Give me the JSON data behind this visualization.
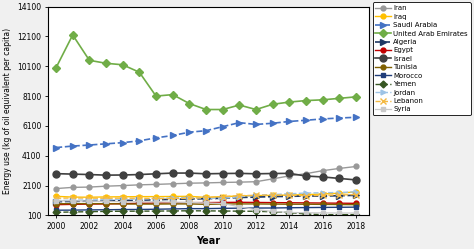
{
  "years": [
    2000,
    2001,
    2002,
    2003,
    2004,
    2005,
    2006,
    2007,
    2008,
    2009,
    2010,
    2011,
    2012,
    2013,
    2014,
    2015,
    2016,
    2017,
    2018
  ],
  "series": {
    "Iran": {
      "color": "#999999",
      "linestyle": "-",
      "marker": "o",
      "markersize": 3.5,
      "markerfacecolor": "#999999",
      "linewidth": 1.0,
      "values": [
        1900,
        1980,
        2000,
        2060,
        2100,
        2150,
        2180,
        2220,
        2260,
        2280,
        2310,
        2330,
        2360,
        2550,
        2750,
        2900,
        3100,
        3250,
        3380
      ]
    },
    "Iraq": {
      "color": "#ffc000",
      "linestyle": "-",
      "marker": "o",
      "markersize": 3.5,
      "markerfacecolor": "#ffc000",
      "linewidth": 1.0,
      "values": [
        1380,
        1330,
        1320,
        1340,
        1350,
        1360,
        1360,
        1370,
        1380,
        1310,
        1360,
        1400,
        1430,
        1440,
        1470,
        1490,
        1540,
        1590,
        1680
      ]
    },
    "Saudi Arabia": {
      "color": "#4472c4",
      "linestyle": "--",
      "marker": ">",
      "markersize": 4,
      "markerfacecolor": "#4472c4",
      "linewidth": 1.2,
      "values": [
        4650,
        4750,
        4820,
        4900,
        4980,
        5100,
        5300,
        5460,
        5680,
        5780,
        6050,
        6320,
        6200,
        6280,
        6400,
        6480,
        6570,
        6630,
        6680
      ]
    },
    "United Arab Emirates": {
      "color": "#70ad47",
      "linestyle": "-",
      "marker": "D",
      "markersize": 4,
      "markerfacecolor": "#70ad47",
      "linewidth": 1.2,
      "values": [
        10000,
        12200,
        10500,
        10300,
        10200,
        9700,
        8100,
        8200,
        7600,
        7200,
        7200,
        7500,
        7200,
        7550,
        7700,
        7800,
        7850,
        7950,
        8050
      ]
    },
    "Algeria": {
      "color": "#1f3864",
      "linestyle": "--",
      "marker": ">",
      "markersize": 4,
      "markerfacecolor": "#1f3864",
      "linewidth": 1.2,
      "values": [
        1020,
        1040,
        1060,
        1080,
        1100,
        1120,
        1150,
        1180,
        1200,
        1220,
        1250,
        1300,
        1330,
        1360,
        1380,
        1400,
        1400,
        1420,
        1450
      ]
    },
    "Egypt": {
      "color": "#c00000",
      "linestyle": "-",
      "marker": "o",
      "markersize": 3.5,
      "markerfacecolor": "#c00000",
      "linewidth": 1.0,
      "values": [
        820,
        840,
        860,
        870,
        890,
        910,
        930,
        950,
        960,
        960,
        970,
        980,
        970,
        960,
        950,
        940,
        930,
        920,
        910
      ]
    },
    "Israel": {
      "color": "#404040",
      "linestyle": "-",
      "marker": "o",
      "markersize": 5,
      "markerfacecolor": "#404040",
      "linewidth": 1.2,
      "values": [
        2900,
        2870,
        2840,
        2800,
        2810,
        2840,
        2890,
        2940,
        2940,
        2890,
        2910,
        2920,
        2890,
        2910,
        2920,
        2740,
        2680,
        2580,
        2480
      ]
    },
    "Tunisia": {
      "color": "#7f6000",
      "linestyle": "-",
      "marker": "o",
      "markersize": 3.5,
      "markerfacecolor": "#7f6000",
      "linewidth": 1.0,
      "values": [
        880,
        890,
        890,
        890,
        870,
        860,
        860,
        870,
        870,
        840,
        870,
        870,
        870,
        860,
        850,
        850,
        840,
        830,
        820
      ]
    },
    "Morocco": {
      "color": "#1f3d7a",
      "linestyle": "-",
      "marker": "s",
      "markersize": 3.5,
      "markerfacecolor": "#1f3d7a",
      "linewidth": 1.0,
      "values": [
        450,
        455,
        470,
        480,
        495,
        500,
        515,
        535,
        555,
        555,
        575,
        585,
        595,
        598,
        615,
        625,
        635,
        645,
        655
      ]
    },
    "Yemen": {
      "color": "#375623",
      "linestyle": "--",
      "marker": "D",
      "markersize": 3.5,
      "markerfacecolor": "#375623",
      "linewidth": 1.0,
      "values": [
        310,
        330,
        350,
        370,
        380,
        385,
        390,
        400,
        410,
        405,
        395,
        385,
        375,
        345,
        295,
        195,
        155,
        145,
        155
      ]
    },
    "Jordan": {
      "color": "#9dc3e6",
      "linestyle": "--",
      "marker": ">",
      "markersize": 3.5,
      "markerfacecolor": "#9dc3e6",
      "linewidth": 1.0,
      "values": [
        1100,
        1120,
        1140,
        1155,
        1180,
        1200,
        1230,
        1280,
        1300,
        1250,
        1250,
        1350,
        1450,
        1500,
        1550,
        1600,
        1620,
        1635,
        1685
      ]
    },
    "Lebanon": {
      "color": "#f4b942",
      "linestyle": "--",
      "marker": "x",
      "markersize": 5,
      "markerfacecolor": "#f4b942",
      "linewidth": 1.0,
      "values": [
        1250,
        1270,
        1260,
        1250,
        1260,
        1250,
        1230,
        1230,
        1250,
        1300,
        1360,
        1420,
        1450,
        1470,
        1450,
        1420,
        1450,
        1470,
        1500
      ]
    },
    "Syria": {
      "color": "#c9c9c9",
      "linestyle": "-",
      "marker": "s",
      "markersize": 3,
      "markerfacecolor": "#c9c9c9",
      "linewidth": 0.9,
      "values": [
        1080,
        1080,
        1050,
        1040,
        1020,
        1020,
        1010,
        990,
        970,
        940,
        900,
        680,
        480,
        370,
        300,
        280,
        270,
        260,
        260
      ]
    }
  },
  "xlabel": "Year",
  "ylabel": "Energy use (kg of oil equivalent per capita)",
  "xlim": [
    1999.5,
    2018.8
  ],
  "ylim": [
    100,
    14100
  ],
  "yticks": [
    100,
    2100,
    4100,
    6100,
    8100,
    10100,
    12100,
    14100
  ],
  "xticks": [
    2000,
    2002,
    2004,
    2006,
    2008,
    2010,
    2012,
    2014,
    2016,
    2018
  ],
  "background_color": "#ffffff",
  "figure_facecolor": "#f0f0f0"
}
